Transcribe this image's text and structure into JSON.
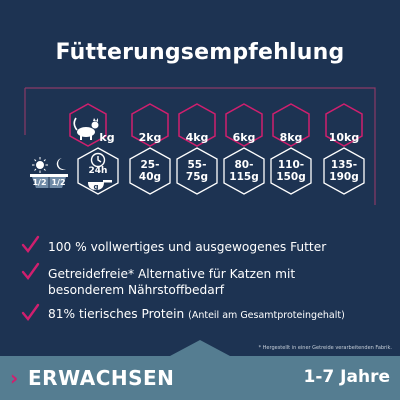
{
  "title": "Fütterungsempfehlung",
  "table": {
    "cat_unit": "kg",
    "weights": [
      "2kg",
      "4kg",
      "6kg",
      "8kg",
      "10kg"
    ],
    "time_label": "24h",
    "scoop_label": "g",
    "grams": [
      [
        "25-",
        "40g"
      ],
      [
        "55-",
        "75g"
      ],
      [
        "80-",
        "115g"
      ],
      [
        "110-",
        "150g"
      ],
      [
        "135-",
        "190g"
      ]
    ],
    "day_split": [
      "1/2",
      "1/2"
    ]
  },
  "bullets": [
    {
      "text": "100 % vollwertiges und ausgewogenes Futter"
    },
    {
      "line1": "Getreidefreie* Alternative für Katzen mit",
      "line2": "besonderem Nährstoffbedarf"
    },
    {
      "text": "81% tierisches Protein",
      "small": "(Anteil am Gesamtproteingehalt)"
    }
  ],
  "footnote": "* Hergestellt in einer Getreide verarbeitenden Fabrik.",
  "banner": {
    "arrow": "›",
    "stage": "ERWACHSEN",
    "age": "1-7 Jahre"
  },
  "colors": {
    "background": "#1d3352",
    "accent": "#d01f6e",
    "banner": "#557d91"
  },
  "icons": [
    "cat-icon",
    "clock-icon",
    "scoop-icon",
    "sun-icon",
    "moon-icon",
    "check-icon"
  ]
}
